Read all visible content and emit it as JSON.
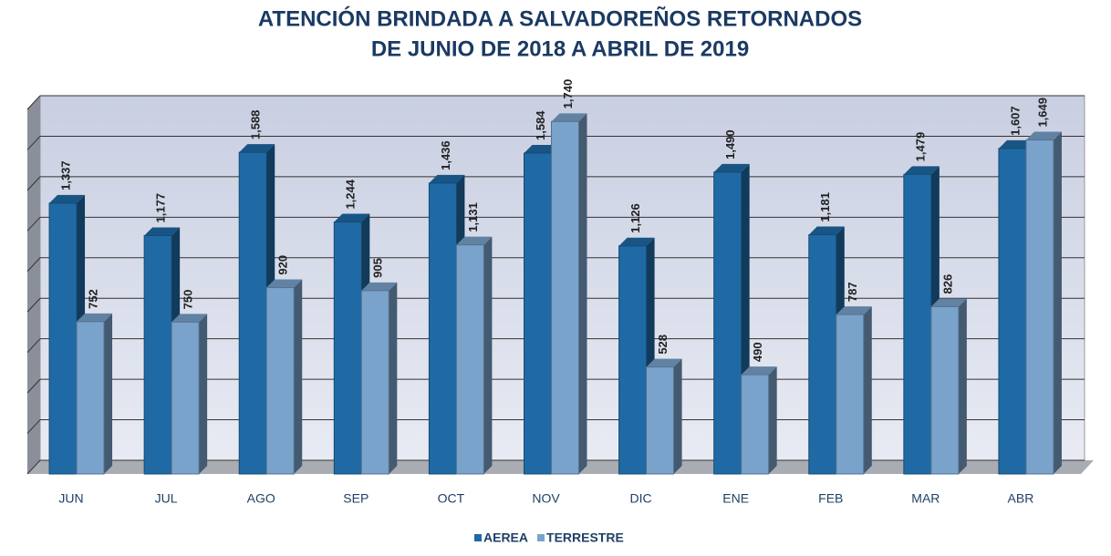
{
  "chart_data": {
    "type": "bar3d",
    "title": "ATENCIÓN BRINDADA A SALVADOREÑOS RETORNADOS",
    "subtitle": "DE JUNIO DE 2018 A ABRIL DE 2019",
    "categories": [
      "JUN",
      "JUL",
      "AGO",
      "SEP",
      "OCT",
      "NOV",
      "DIC",
      "ENE",
      "FEB",
      "MAR",
      "ABR"
    ],
    "series": [
      {
        "name": "AEREA",
        "color": "#1f6aa5",
        "values": [
          1337,
          1177,
          1588,
          1244,
          1436,
          1584,
          1126,
          1490,
          1181,
          1479,
          1607
        ],
        "value_labels": [
          "1,337",
          "1,177",
          "1,588",
          "1,244",
          "1,436",
          "1,584",
          "1,126",
          "1,490",
          "1,181",
          "1,479",
          "1,607"
        ]
      },
      {
        "name": "TERRESTRE",
        "color": "#7aa3cc",
        "values": [
          752,
          750,
          920,
          905,
          1131,
          1740,
          528,
          490,
          787,
          826,
          1649
        ],
        "value_labels": [
          "752",
          "750",
          "920",
          "905",
          "1,131",
          "1,740",
          "528",
          "490",
          "787",
          "826",
          "1,649"
        ]
      }
    ],
    "ylim": [
      0,
      1800
    ],
    "yticks": [
      0,
      200,
      400,
      600,
      800,
      1000,
      1200,
      1400,
      1600,
      1800
    ],
    "grid": true,
    "legend": "bottom"
  }
}
